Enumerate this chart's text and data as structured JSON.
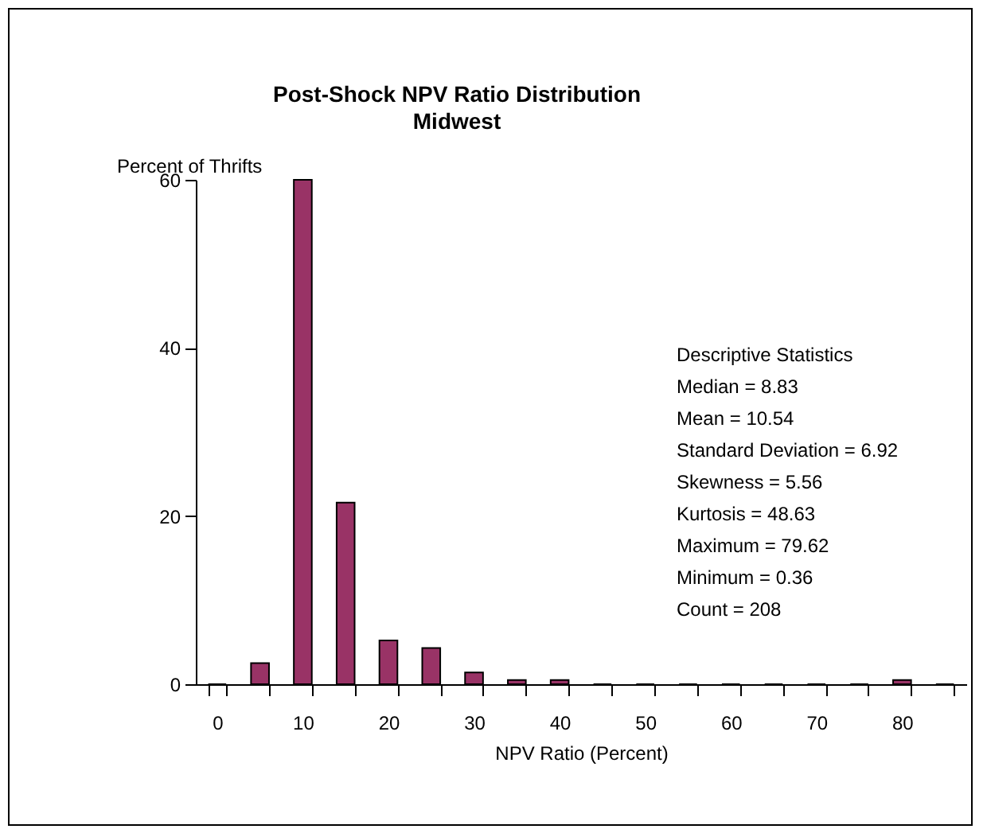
{
  "chart_data": {
    "type": "bar",
    "title": "Post-Shock NPV Ratio Distribution",
    "subtitle": "Midwest",
    "xlabel": "NPV Ratio (Percent)",
    "ylabel": "Percent of Thrifts",
    "categories": [
      "0",
      null,
      "10",
      null,
      "20",
      null,
      "30",
      null,
      "40",
      null,
      "50",
      null,
      "60",
      null,
      "70",
      null,
      "80",
      null
    ],
    "values": [
      0,
      2.5,
      60,
      21.6,
      5.2,
      4.3,
      1.4,
      0.5,
      0.5,
      0,
      0,
      0,
      0,
      0,
      0,
      0,
      0.5,
      0
    ],
    "color": "#993366",
    "ylim": [
      0,
      60
    ],
    "yticks": [
      0,
      20,
      40,
      60
    ],
    "grid": false,
    "annotations": [
      "Descriptive Statistics",
      "Median  = 8.83",
      "Mean = 10.54",
      "Standard Deviation = 6.92",
      "Skewness = 5.56",
      "Kurtosis = 48.63",
      "Maximum = 79.62",
      "Minimum = 0.36",
      "Count = 208"
    ]
  }
}
